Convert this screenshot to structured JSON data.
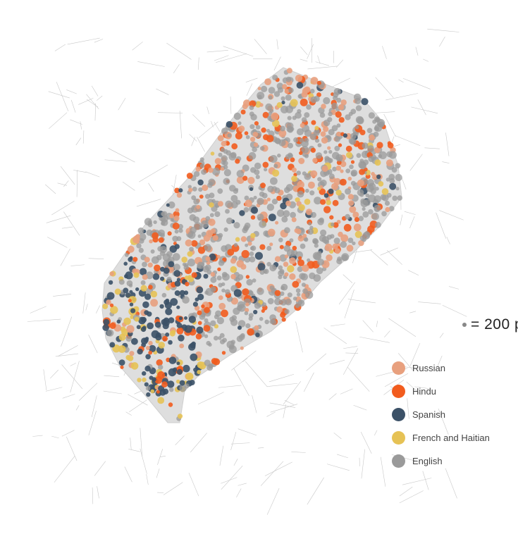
{
  "scale": {
    "label": "= 200 p"
  },
  "legend": {
    "items": [
      {
        "label": "Russian",
        "color": "#e8a07e",
        "icon": "circle-swatch"
      },
      {
        "label": "Hindu",
        "color": "#f25c1e",
        "icon": "circle-swatch"
      },
      {
        "label": "Spanish",
        "color": "#3b5167",
        "icon": "circle-swatch"
      },
      {
        "label": "French and Haitian",
        "color": "#e6c255",
        "icon": "circle-swatch"
      },
      {
        "label": "English",
        "color": "#9a9a9a",
        "icon": "circle-swatch"
      }
    ]
  },
  "map": {
    "base_map_color": "#d9d9d9",
    "street_color": "#c8c8c8",
    "district_color": "#e0e0e0"
  }
}
